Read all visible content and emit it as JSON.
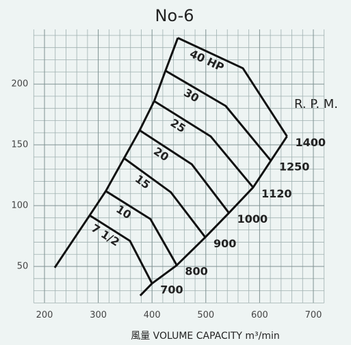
{
  "chart_data": {
    "type": "line",
    "title": "No-6",
    "x_label": "風量  VOLUME CAPACITY m³/min",
    "xlim": [
      180,
      720
    ],
    "ylim": [
      20,
      245
    ],
    "xticks": [
      200,
      300,
      400,
      500,
      600,
      700
    ],
    "yticks": [
      50,
      100,
      150,
      200
    ],
    "xminor": [
      180,
      220,
      240,
      260,
      280,
      320,
      340,
      360,
      380,
      420,
      440,
      460,
      480,
      520,
      540,
      560,
      580,
      620,
      640,
      660,
      680,
      720
    ],
    "yminor": [
      20,
      30,
      40,
      60,
      70,
      80,
      90,
      110,
      120,
      130,
      140,
      160,
      170,
      180,
      190,
      210,
      220,
      230,
      240
    ],
    "grid": true,
    "color": "#111111",
    "series": [
      {
        "name": "7 1/2",
        "x": [
          284,
          359,
          400
        ],
        "values": [
          92,
          71,
          36
        ]
      },
      {
        "name": "10",
        "x": [
          314,
          397,
          446
        ],
        "values": [
          112,
          89,
          51
        ]
      },
      {
        "name": "15",
        "x": [
          348,
          435,
          499
        ],
        "values": [
          139,
          111,
          74
        ]
      },
      {
        "name": "20",
        "x": [
          377,
          474,
          543
        ],
        "values": [
          162,
          134,
          94
        ]
      },
      {
        "name": "25",
        "x": [
          404,
          509,
          588
        ],
        "values": [
          186,
          157,
          115
        ]
      },
      {
        "name": "30",
        "x": [
          425,
          537,
          621
        ],
        "values": [
          211,
          182,
          137
        ]
      },
      {
        "name": "40 HP",
        "x": [
          448,
          569,
          651
        ],
        "values": [
          238,
          213,
          157
        ]
      }
    ],
    "envelope": {
      "x": [
        219,
        284,
        314,
        348,
        377,
        404,
        425,
        448
      ],
      "values": [
        49,
        92,
        112,
        139,
        162,
        186,
        211,
        238
      ]
    },
    "rpm": {
      "title": "R. P. M.",
      "labels": [
        null,
        700,
        800,
        900,
        1000,
        1120,
        1250,
        1400
      ],
      "x": [
        378,
        400,
        446,
        499,
        543,
        588,
        621,
        651
      ],
      "values": [
        26,
        36,
        51,
        74,
        94,
        115,
        137,
        157
      ]
    }
  }
}
